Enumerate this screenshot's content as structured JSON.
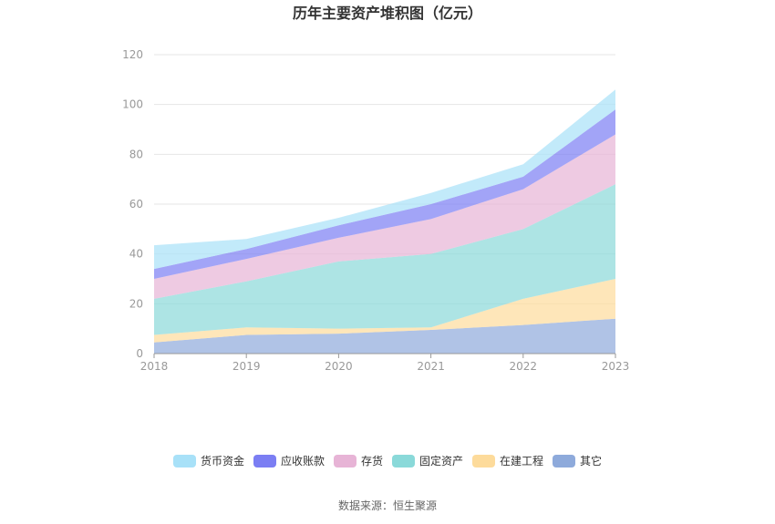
{
  "chart_data": {
    "type": "area",
    "stacked": true,
    "title": "历年主要资产堆积图（亿元）",
    "x": [
      "2018",
      "2019",
      "2020",
      "2021",
      "2022",
      "2023"
    ],
    "ylim": [
      0,
      120
    ],
    "yticks": [
      "0",
      "20",
      "40",
      "60",
      "80",
      "100",
      "120"
    ],
    "grid": true,
    "legend_position": "bottom",
    "series": [
      {
        "name": "其它",
        "color": "#8eaadb",
        "values": [
          4.5,
          7.5,
          8,
          9.5,
          11.5,
          14
        ]
      },
      {
        "name": "在建工程",
        "color": "#fddb9b",
        "values": [
          3,
          3,
          2,
          1,
          10.5,
          16
        ]
      },
      {
        "name": "固定资产",
        "color": "#8ad9d9",
        "values": [
          14.5,
          18.5,
          27,
          29.5,
          28,
          38
        ]
      },
      {
        "name": "存货",
        "color": "#e7b4d6",
        "values": [
          8,
          9,
          9.5,
          14,
          16,
          20
        ]
      },
      {
        "name": "应收账款",
        "color": "#7b7ef3",
        "values": [
          4,
          4,
          5,
          6,
          5,
          10
        ]
      },
      {
        "name": "货币资金",
        "color": "#a8e1f8",
        "values": [
          9.5,
          4,
          3,
          4.5,
          5,
          8
        ]
      }
    ],
    "legend_order": [
      "货币资金",
      "应收账款",
      "存货",
      "固定资产",
      "在建工程",
      "其它"
    ]
  },
  "source": "数据来源：恒生聚源",
  "colors": {
    "grid": "#e6e6e6",
    "axis": "#999999"
  }
}
